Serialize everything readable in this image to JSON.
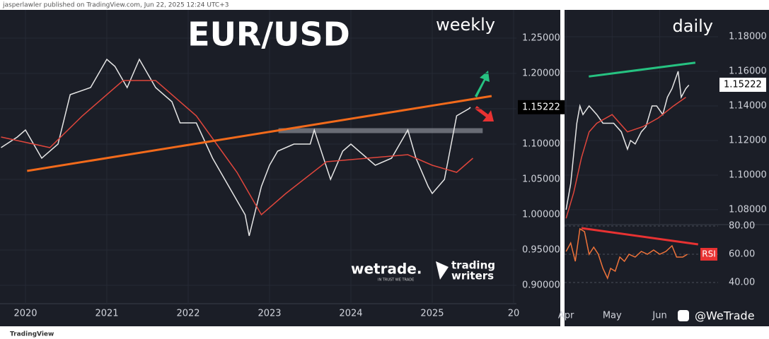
{
  "header": "jasperlawler published on TradingView.com, Jun 22, 2025 12:24 UTC+3",
  "footer": "TradingView",
  "branding": {
    "wetrade": "wetrade.",
    "tagline": "IN TRUST WE TRADE",
    "trading": "trading",
    "writers": "writers",
    "social": "@WeTrade"
  },
  "chart_data": [
    {
      "type": "line",
      "title": "EUR/USD",
      "subtitle": "weekly",
      "xlim": [
        2019.687,
        2026.035
      ],
      "ylim": [
        0.874,
        1.29
      ],
      "xticks": [
        2020,
        2021,
        2022,
        2023,
        2024,
        2025,
        {
          "value": 2026,
          "label": "20"
        }
      ],
      "yticks": [
        {
          "value": 0.9,
          "label": "0.90000"
        },
        {
          "value": 0.95,
          "label": "0.95000"
        },
        {
          "value": 1.0,
          "label": "1.00000"
        },
        {
          "value": 1.05,
          "label": "1.05000"
        },
        {
          "value": 1.1,
          "label": "1.10000"
        },
        {
          "value": 1.15,
          "label": "1.15000"
        },
        {
          "value": 1.2,
          "label": "1.20000"
        },
        {
          "value": 1.25,
          "label": "1.25000"
        }
      ],
      "grid": true,
      "last_price": {
        "value": 1.15222,
        "label": "1.15222"
      },
      "series": [
        {
          "color": "#e6e6e6",
          "x": [
            2019.7,
            2019.9,
            2020.0,
            2020.2,
            2020.4,
            2020.55,
            2020.8,
            2021.0,
            2021.1,
            2021.25,
            2021.4,
            2021.6,
            2021.8,
            2021.9,
            2022.1,
            2022.3,
            2022.5,
            2022.7,
            2022.75,
            2022.9,
            2023.0,
            2023.1,
            2023.3,
            2023.5,
            2023.55,
            2023.75,
            2023.9,
            2024.0,
            2024.2,
            2024.3,
            2024.5,
            2024.6,
            2024.7,
            2024.8,
            2024.95,
            2025.0,
            2025.15,
            2025.3,
            2025.45,
            2025.47
          ],
          "values": [
            1.095,
            1.11,
            1.12,
            1.08,
            1.1,
            1.17,
            1.18,
            1.22,
            1.21,
            1.18,
            1.22,
            1.18,
            1.16,
            1.13,
            1.13,
            1.08,
            1.04,
            1.0,
            0.97,
            1.04,
            1.07,
            1.09,
            1.1,
            1.1,
            1.12,
            1.05,
            1.09,
            1.1,
            1.08,
            1.07,
            1.08,
            1.1,
            1.12,
            1.08,
            1.04,
            1.03,
            1.05,
            1.14,
            1.15,
            1.152
          ]
        },
        {
          "color": "#e0463c",
          "x": [
            2019.7,
            2020.3,
            2020.7,
            2021.2,
            2021.6,
            2022.1,
            2022.6,
            2022.9,
            2023.2,
            2023.7,
            2024.2,
            2024.7,
            2025.0,
            2025.3,
            2025.5
          ],
          "values": [
            1.11,
            1.095,
            1.14,
            1.19,
            1.19,
            1.14,
            1.06,
            1.0,
            1.03,
            1.075,
            1.08,
            1.085,
            1.07,
            1.06,
            1.08
          ]
        }
      ],
      "trendlines": [
        {
          "color": "#f26a1b",
          "x": [
            2020.02,
            2025.73
          ],
          "y": [
            1.062,
            1.168
          ]
        }
      ],
      "levels": [
        {
          "color": "#8a8d96",
          "x": [
            2023.11,
            2025.62
          ],
          "y": 1.119
        }
      ]
    },
    {
      "type": "line",
      "subtitle": "daily",
      "xlim": [
        -1,
        99
      ],
      "ylim": [
        1.0714,
        1.1955
      ],
      "xticks": [
        {
          "value": 0,
          "label": "Apr"
        },
        {
          "value": 30,
          "label": "May"
        },
        {
          "value": 61,
          "label": "Jun"
        }
      ],
      "yticks": [
        {
          "value": 1.08,
          "label": "1.08000"
        },
        {
          "value": 1.1,
          "label": "1.10000"
        },
        {
          "value": 1.12,
          "label": "1.12000"
        },
        {
          "value": 1.14,
          "label": "1.14000"
        },
        {
          "value": 1.16,
          "label": "1.16000"
        },
        {
          "value": 1.18,
          "label": "1.18000"
        }
      ],
      "grid": true,
      "last_price": {
        "value": 1.15222,
        "label": "1.15222"
      },
      "series": [
        {
          "color": "#e6e6e6",
          "x": [
            0,
            3,
            7,
            9,
            11,
            15,
            20,
            24,
            28,
            31,
            36,
            40,
            42,
            45,
            49,
            52,
            56,
            59,
            63,
            66,
            69,
            71,
            73,
            75,
            78,
            80
          ],
          "values": [
            1.08,
            1.095,
            1.13,
            1.14,
            1.135,
            1.14,
            1.135,
            1.13,
            1.13,
            1.13,
            1.125,
            1.115,
            1.12,
            1.118,
            1.125,
            1.128,
            1.14,
            1.14,
            1.135,
            1.145,
            1.15,
            1.155,
            1.16,
            1.145,
            1.15,
            1.152
          ]
        },
        {
          "color": "#e0463c",
          "x": [
            0,
            5,
            10,
            15,
            20,
            30,
            40,
            50,
            60,
            70,
            78
          ],
          "values": [
            1.075,
            1.09,
            1.11,
            1.125,
            1.13,
            1.135,
            1.125,
            1.128,
            1.133,
            1.14,
            1.145
          ]
        }
      ],
      "trendlines": [
        {
          "color": "#26c281",
          "x": [
            14.8,
            84.2
          ],
          "y": [
            1.157,
            1.165
          ]
        }
      ]
    },
    {
      "type": "line",
      "subtitle": "RSI",
      "xlim": [
        -1,
        99
      ],
      "ylim": [
        10,
        81
      ],
      "yticks": [
        {
          "value": 40,
          "label": "40.00"
        },
        {
          "value": 60,
          "label": "60.00"
        },
        {
          "value": 80,
          "label": "80.00"
        }
      ],
      "grid": true,
      "series": [
        {
          "color": "#f0733a",
          "x": [
            0,
            3,
            6,
            9,
            12,
            15,
            18,
            21,
            24,
            27,
            29,
            32,
            35,
            38,
            41,
            45,
            49,
            53,
            57,
            61,
            65,
            69,
            72,
            76,
            79
          ],
          "values": [
            62,
            68,
            55,
            78,
            76,
            60,
            65,
            60,
            50,
            43,
            50,
            48,
            58,
            55,
            60,
            58,
            62,
            60,
            63,
            60,
            62,
            66,
            58,
            58,
            60
          ]
        }
      ],
      "trendlines": [
        {
          "color": "#e83232",
          "x": [
            10,
            86
          ],
          "y": [
            78.5,
            67
          ]
        }
      ]
    }
  ]
}
